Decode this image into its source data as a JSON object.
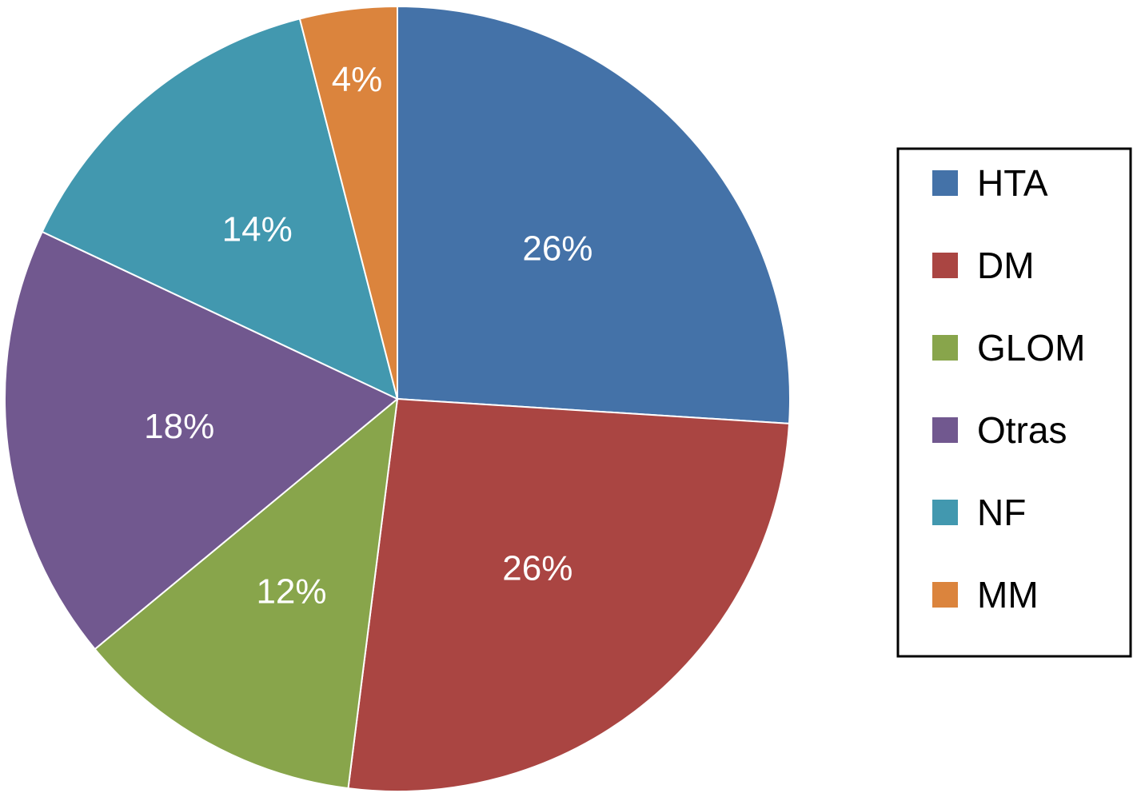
{
  "chart_data": {
    "type": "pie",
    "start_angle_deg": 0,
    "direction": "clockwise",
    "slices": [
      {
        "label": "HTA",
        "value": 26,
        "value_label": "26%",
        "color": "#4472A8"
      },
      {
        "label": "DM",
        "value": 26,
        "value_label": "26%",
        "color": "#AA4542"
      },
      {
        "label": "GLOM",
        "value": 12,
        "value_label": "12%",
        "color": "#88A54B"
      },
      {
        "label": "Otras",
        "value": 18,
        "value_label": "18%",
        "color": "#71588F"
      },
      {
        "label": "NF",
        "value": 14,
        "value_label": "14%",
        "color": "#4298AF"
      },
      {
        "label": "MM",
        "value": 4,
        "value_label": "4%",
        "color": "#DB843D"
      }
    ],
    "legend": {
      "placement": "right",
      "border_color": "#000000"
    }
  }
}
